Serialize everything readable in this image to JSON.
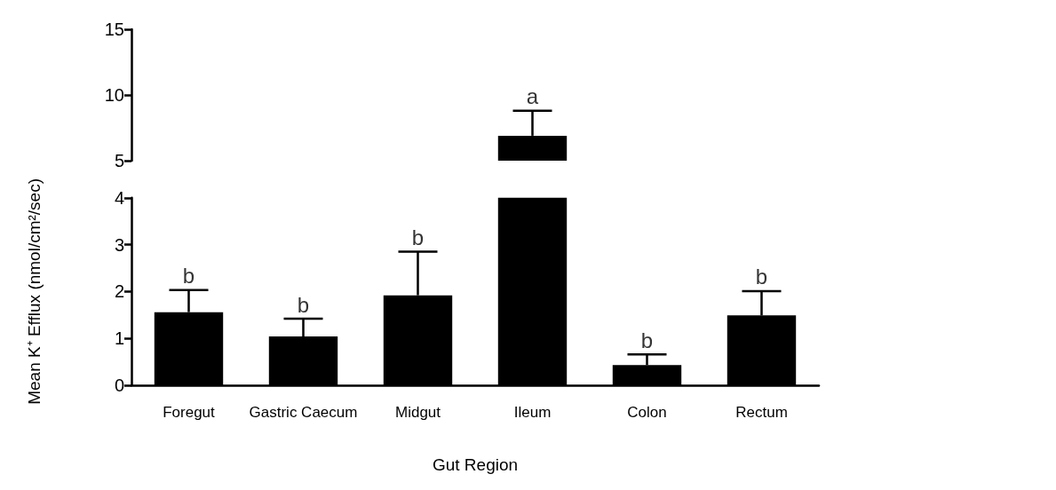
{
  "chart_data": [
    {
      "type": "bar",
      "categories": [
        "Foregut",
        "Gastric Caecum",
        "Midgut",
        "Ileum",
        "Colon",
        "Rectum"
      ],
      "values": [
        null,
        null,
        null,
        6.9,
        null,
        null
      ],
      "errors": [
        null,
        null,
        null,
        1.9,
        null,
        null
      ],
      "color": "#000000",
      "ylim": [
        5,
        15
      ],
      "yticks": [
        5,
        10,
        15
      ],
      "tick_labels": "y",
      "annotations": [
        {
          "text": "a",
          "x": "Ileum",
          "y": 8.8
        }
      ]
    },
    {
      "type": "bar",
      "categories": [
        "Foregut",
        "Gastric Caecum",
        "Midgut",
        "Ileum",
        "Colon",
        "Rectum"
      ],
      "values": [
        1.56,
        1.04,
        1.92,
        4,
        0.43,
        1.49
      ],
      "errors": [
        0.47,
        0.38,
        0.93,
        null,
        0.23,
        0.52
      ],
      "color": "#000000",
      "ylim": [
        0,
        4
      ],
      "yticks": [
        0,
        1,
        2,
        3,
        4
      ],
      "xlabel": "Gut Region",
      "ylabel": "Mean K⁺ Efflux (nmol/cm²/sec)",
      "annotations": [
        {
          "text": "b",
          "x": "Foregut",
          "y": 2.03
        },
        {
          "text": "b",
          "x": "Gastric Caecum",
          "y": 1.42
        },
        {
          "text": "b",
          "x": "Midgut",
          "y": 2.85
        },
        {
          "text": "b",
          "x": "Colon",
          "y": 0.66
        },
        {
          "text": "b",
          "x": "Rectum",
          "y": 2.01
        }
      ]
    }
  ]
}
